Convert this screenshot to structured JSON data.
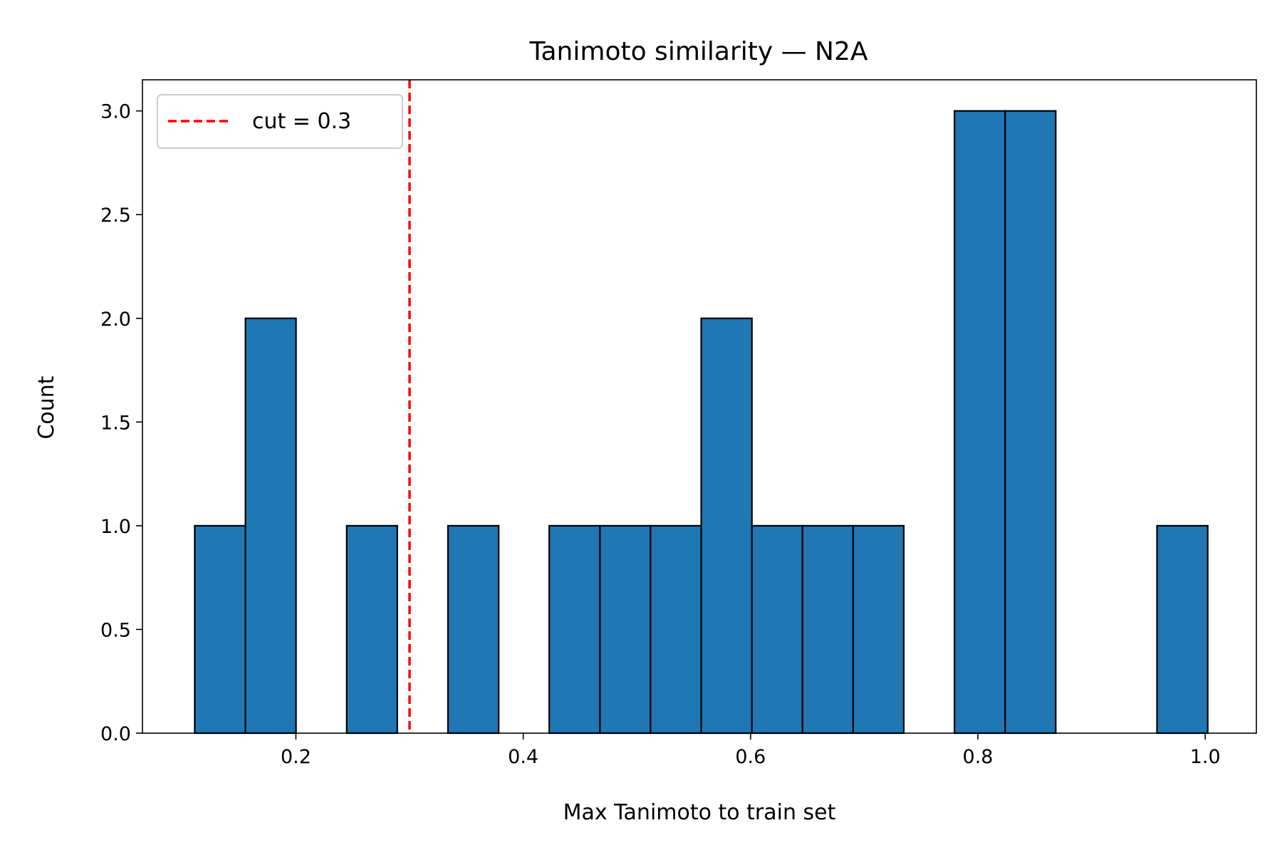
{
  "chart_data": {
    "type": "bar",
    "title": "Tanimoto similarity — N2A",
    "xlabel": "Max Tanimoto to train set",
    "ylabel": "Count",
    "xlim": [
      0.065,
      1.045
    ],
    "ylim": [
      0,
      3.15
    ],
    "xticks": [
      {
        "value": 0.2,
        "label": "0.2"
      },
      {
        "value": 0.4,
        "label": "0.4"
      },
      {
        "value": 0.6,
        "label": "0.6"
      },
      {
        "value": 0.8,
        "label": "0.8"
      },
      {
        "value": 1.0,
        "label": "1.0"
      }
    ],
    "yticks": [
      {
        "value": 0.0,
        "label": "0.0"
      },
      {
        "value": 0.5,
        "label": "0.5"
      },
      {
        "value": 1.0,
        "label": "1.0"
      },
      {
        "value": 1.5,
        "label": "1.5"
      },
      {
        "value": 2.0,
        "label": "2.0"
      },
      {
        "value": 2.5,
        "label": "2.5"
      },
      {
        "value": 3.0,
        "label": "3.0"
      }
    ],
    "bin_edges": [
      0.111,
      0.1556,
      0.2001,
      0.2447,
      0.2892,
      0.3338,
      0.3784,
      0.4229,
      0.4675,
      0.512,
      0.5566,
      0.6012,
      0.6457,
      0.6903,
      0.7348,
      0.7794,
      0.824,
      0.8685,
      0.9131,
      0.9576,
      1.0022
    ],
    "counts": [
      1,
      2,
      0,
      1,
      0,
      1,
      0,
      1,
      1,
      1,
      2,
      1,
      1,
      1,
      0,
      3,
      3,
      0,
      0,
      1
    ],
    "bar_color": "#1f77b4",
    "edge_color": "#000000",
    "grid": false,
    "reference_line": {
      "x": 0.3,
      "style": "dashed",
      "color": "#ff0000",
      "label": "cut = 0.3"
    },
    "legend": {
      "placement": "upper-left",
      "entries": [
        "cut = 0.3"
      ]
    }
  }
}
